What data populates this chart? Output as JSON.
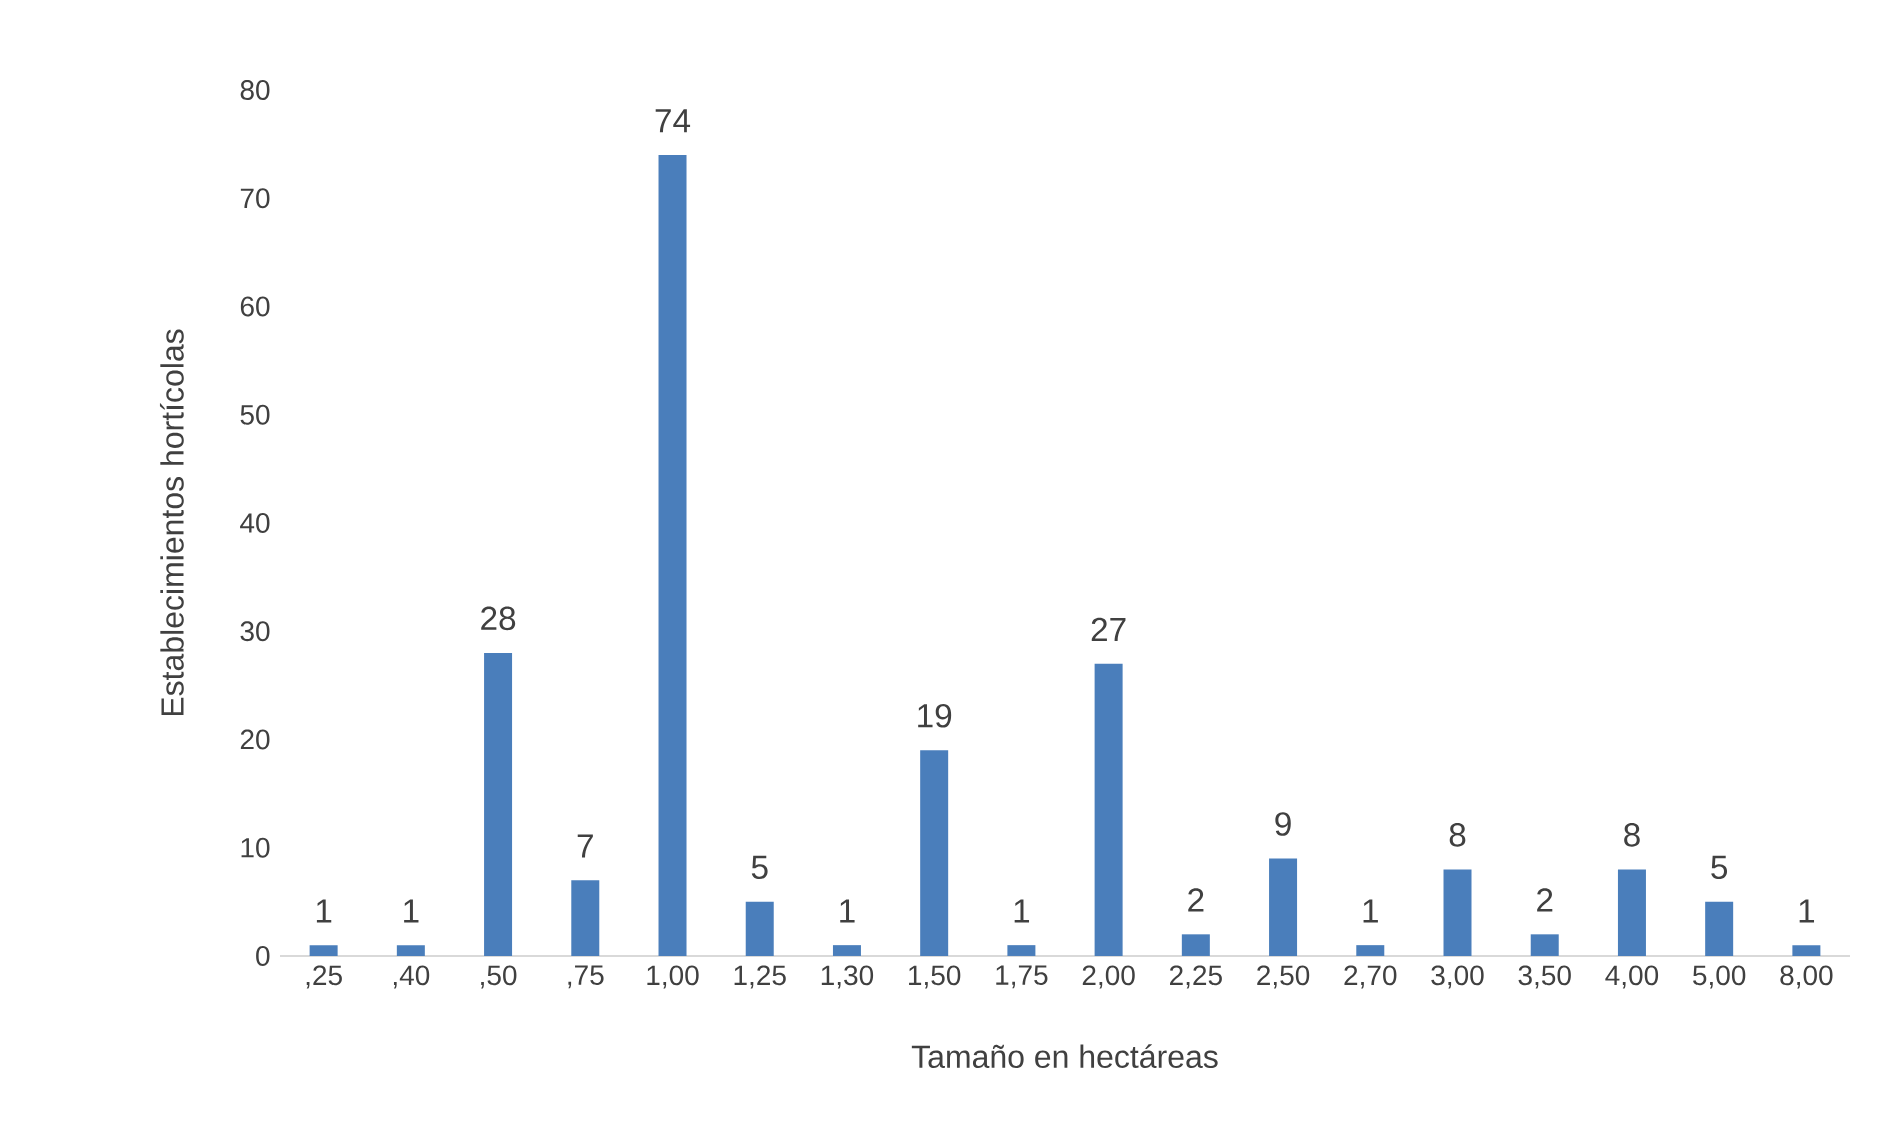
{
  "chart_data": {
    "type": "bar",
    "xlabel": "Tamaño en hectáreas",
    "ylabel": "Establecimientos hortícolas",
    "categories": [
      ",25",
      ",40",
      ",50",
      ",75",
      "1,00",
      "1,25",
      "1,30",
      "1,50",
      "1,75",
      "2,00",
      "2,25",
      "2,50",
      "2,70",
      "3,00",
      "3,50",
      "4,00",
      "5,00",
      "8,00"
    ],
    "values": [
      1,
      1,
      28,
      7,
      74,
      5,
      1,
      19,
      1,
      27,
      2,
      9,
      1,
      8,
      2,
      8,
      5,
      1
    ],
    "color": "#4a7ebb",
    "ylim": [
      0,
      80
    ],
    "yticks": [
      0,
      10,
      20,
      30,
      40,
      50,
      60,
      70,
      80
    ],
    "data_labels": true
  }
}
